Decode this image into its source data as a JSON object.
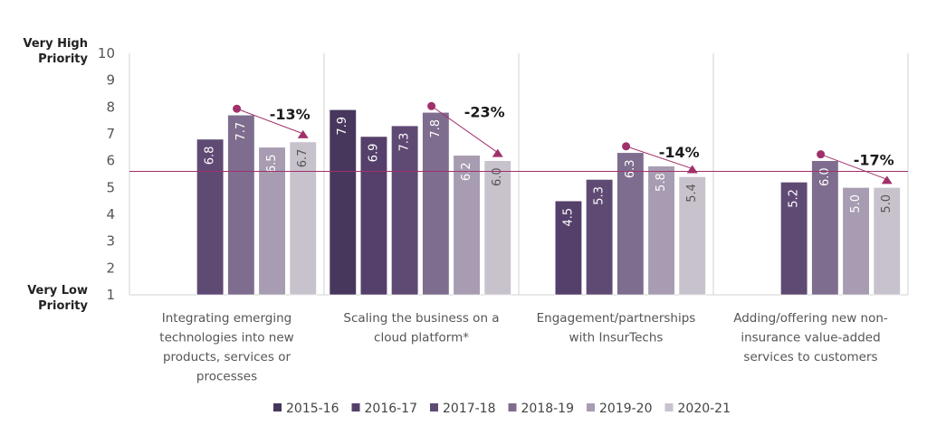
{
  "chart_data": {
    "type": "bar",
    "title": "",
    "xlabel": "",
    "ylabel": "",
    "ylim": [
      1,
      10
    ],
    "yticks": [
      1,
      2,
      3,
      4,
      5,
      6,
      7,
      8,
      9,
      10
    ],
    "y_end_labels": {
      "top": [
        "Very High",
        "Priority"
      ],
      "bottom": [
        "Very Low",
        "Priority"
      ]
    },
    "grid": false,
    "legend_position": "bottom",
    "reference_line": {
      "value": 5.6,
      "color": "#a0306a"
    },
    "categories": [
      [
        "Integrating emerging",
        "technologies into new",
        "products, services or",
        "processes"
      ],
      [
        "Scaling the business on a",
        "cloud platform*"
      ],
      [
        "Engagement/partnerships",
        "with InsurTechs"
      ],
      [
        "Adding/offering new non-",
        "insurance value-added",
        "services to customers"
      ]
    ],
    "series": [
      {
        "name": "2015-16",
        "color": "#47375c",
        "label_color": "#ffffff",
        "values": [
          null,
          7.9,
          null,
          null
        ]
      },
      {
        "name": "2016-17",
        "color": "#54406a",
        "label_color": "#ffffff",
        "values": [
          null,
          6.9,
          4.5,
          null
        ]
      },
      {
        "name": "2017-18",
        "color": "#5f4a74",
        "label_color": "#ffffff",
        "values": [
          6.8,
          7.3,
          5.3,
          5.2
        ]
      },
      {
        "name": "2018-19",
        "color": "#7e6d8e",
        "label_color": "#ffffff",
        "values": [
          7.7,
          7.8,
          6.3,
          6.0
        ]
      },
      {
        "name": "2019-20",
        "color": "#a79cb2",
        "label_color": "#ffffff",
        "values": [
          6.5,
          6.2,
          5.8,
          5.0
        ]
      },
      {
        "name": "2020-21",
        "color": "#c8c2cc",
        "label_color": "#555555",
        "values": [
          6.7,
          6.0,
          5.4,
          5.0
        ]
      }
    ],
    "annotations": [
      {
        "category": 0,
        "from_series": "2018-19",
        "to_series": "2020-21",
        "text": "-13%"
      },
      {
        "category": 1,
        "from_series": "2018-19",
        "to_series": "2020-21",
        "text": "-23%"
      },
      {
        "category": 2,
        "from_series": "2018-19",
        "to_series": "2020-21",
        "text": "-14%"
      },
      {
        "category": 3,
        "from_series": "2018-19",
        "to_series": "2020-21",
        "text": "-17%"
      }
    ],
    "annotation_color": "#a0306a"
  }
}
